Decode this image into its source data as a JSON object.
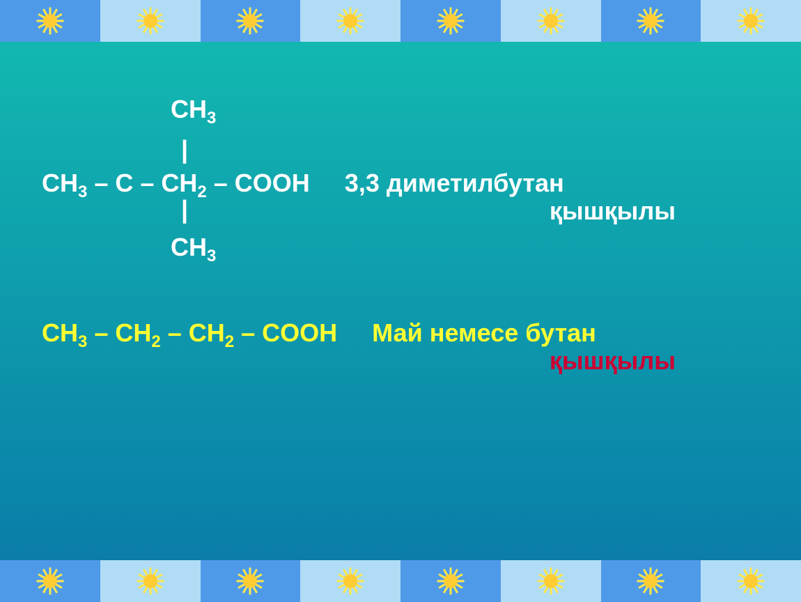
{
  "border": {
    "tile_count": 8,
    "tile_colors": [
      "#4f9ae8",
      "#b0dcf5"
    ],
    "sun_color": "#ffe84a",
    "sun_center_color": "#ffcc33"
  },
  "background": {
    "gradient_color_top": "#12b8b0",
    "gradient_color_bottom": "#0a7da8",
    "gradient_angle_deg": 180
  },
  "formula1": {
    "line1": "CH",
    "line1_sub": "3",
    "pipe": "|",
    "main_parts": [
      {
        "t": "CH"
      },
      {
        "s": "3"
      },
      {
        "t": " –  C  – CH"
      },
      {
        "s": "2"
      },
      {
        "t": "  – COOH"
      }
    ],
    "name": "3,3 диметилбутан",
    "subtitle": "қышқылы",
    "line4": "CH",
    "line4_sub": "3",
    "text_color": "#ffffff",
    "fontsize": 36
  },
  "formula2": {
    "main_parts": [
      {
        "t": "CH"
      },
      {
        "s": "3"
      },
      {
        "t": " –  CH"
      },
      {
        "s": "2"
      },
      {
        "t": "  – CH"
      },
      {
        "s": "2"
      },
      {
        "t": "  – COOH"
      }
    ],
    "name": "Май немесе бутан",
    "subtitle": "қышқылы",
    "text_color": "#ffff33",
    "subtitle_color": "#cc0033",
    "fontsize": 36
  }
}
